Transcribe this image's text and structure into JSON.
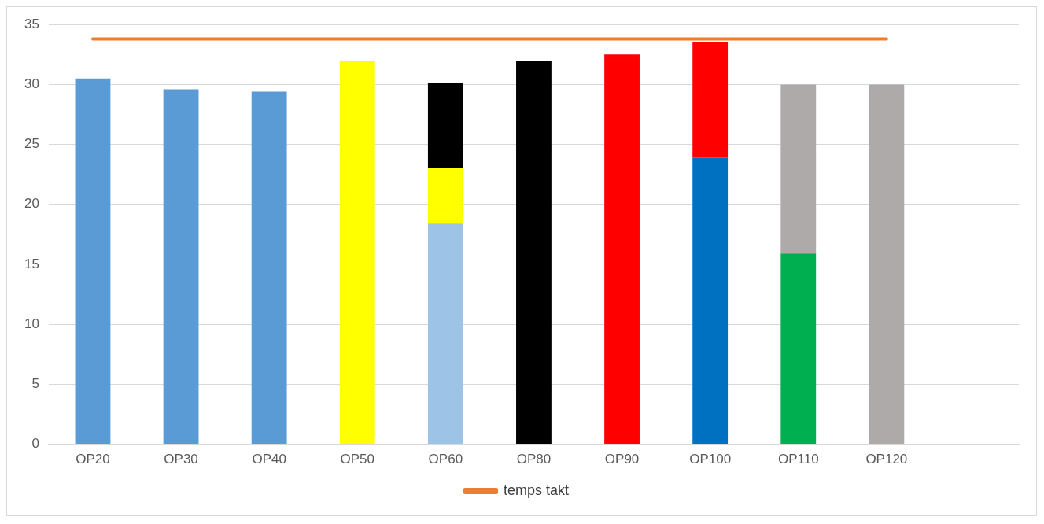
{
  "chart_data": {
    "type": "bar",
    "stacked": true,
    "categories": [
      "OP20",
      "OP30",
      "OP40",
      "OP50",
      "OP60",
      "OP80",
      "OP90",
      "OP100",
      "OP110",
      "OP120",
      null
    ],
    "series": [
      {
        "colors": [
          "#5b9bd5",
          "#5b9bd5",
          "#5b9bd5",
          "#ffff00",
          "#9dc3e6",
          "#000000",
          "#ff0000",
          "#0070c0",
          "#00b050",
          "#aeaaaa",
          "#aeaaaa"
        ],
        "values": [
          30.5,
          29.6,
          29.4,
          32,
          18.4,
          32,
          32.5,
          23.9,
          15.9,
          30,
          null
        ]
      },
      {
        "colors": [
          "#ffff00",
          "#ffff00",
          "#ffff00",
          "#ffff00",
          "#ffff00",
          "#ff0000",
          "#ff0000",
          "#ff0000",
          "#aeaaaa",
          "#aeaaaa",
          "#aeaaaa"
        ],
        "values": [
          null,
          null,
          null,
          null,
          4.6,
          null,
          null,
          9.6,
          14.1,
          null,
          null
        ]
      },
      {
        "color": "#000000",
        "values": [
          null,
          null,
          null,
          null,
          7.1,
          null,
          null,
          null,
          null,
          null,
          null
        ]
      },
      {
        "type": "line",
        "name": "temps takt",
        "color": "#ed7d31",
        "values": [
          33.8,
          33.8,
          33.8,
          33.8,
          33.8,
          33.8,
          33.8,
          33.8,
          33.8,
          33.8,
          null
        ]
      }
    ],
    "ylim": [
      0,
      35
    ],
    "yticks": [
      0,
      5,
      10,
      15,
      20,
      25,
      30,
      35
    ],
    "grid": "y",
    "legend": "bottom",
    "marker": "none"
  }
}
